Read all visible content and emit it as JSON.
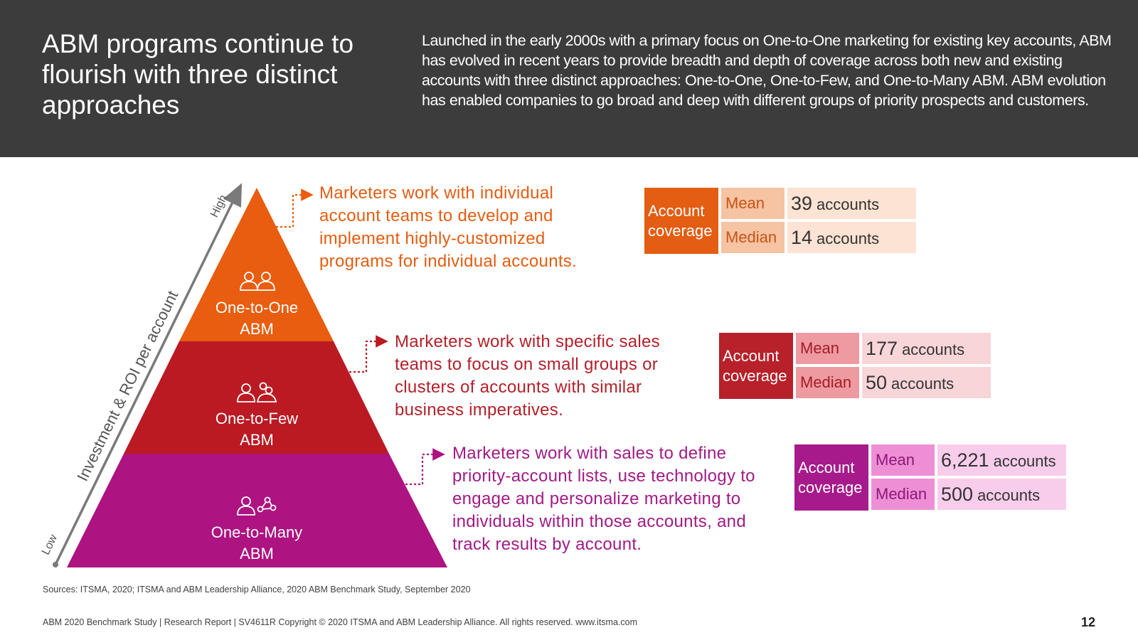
{
  "header": {
    "title": "ABM programs continue to flourish with three distinct approaches",
    "description": "Launched in the early 2000s with a primary focus on One-to-One marketing for existing key accounts, ABM has evolved in recent years to provide breadth and depth of coverage across both new and existing accounts with three distinct approaches: One-to-One, One-to-Few, and One-to-Many ABM. ABM evolution has enabled companies to go broad and deep with different groups of priority prospects and customers."
  },
  "axis": {
    "label": "Investment & ROI per account",
    "high": "High",
    "low": "Low"
  },
  "colors": {
    "one_to_one": "#e85d0f",
    "one_to_few": "#bb1a23",
    "one_to_many": "#ad1381"
  },
  "tiers": [
    {
      "name_line1": "One-to-One",
      "name_line2": "ABM",
      "icon": "two-people-icon",
      "description": "Marketers work with individual account teams to develop and implement highly-customized programs for individual accounts.",
      "coverage": {
        "label_line1": "Account",
        "label_line2": "coverage",
        "mean_label": "Mean",
        "mean_value": "39",
        "median_label": "Median",
        "median_value": "14",
        "unit": "accounts"
      }
    },
    {
      "name_line1": "One-to-Few",
      "name_line2": "ABM",
      "icon": "person-and-group-icon",
      "description": "Marketers work with specific sales teams to focus on small groups or clusters of accounts with similar business imperatives.",
      "coverage": {
        "label_line1": "Account",
        "label_line2": "coverage",
        "mean_label": "Mean",
        "mean_value": "177",
        "median_label": "Median",
        "median_value": "50",
        "unit": "accounts"
      }
    },
    {
      "name_line1": "One-to-Many",
      "name_line2": "ABM",
      "icon": "person-and-network-icon",
      "description": "Marketers work with sales to define priority-account lists, use technology to engage and personalize marketing to individuals within those accounts, and track results by account.",
      "coverage": {
        "label_line1": "Account",
        "label_line2": "coverage",
        "mean_label": "Mean",
        "mean_value": "6,221",
        "median_label": "Median",
        "median_value": "500",
        "unit": "accounts"
      }
    }
  ],
  "sources": "Sources: ITSMA, 2020; ITSMA and ABM Leadership Alliance, 2020 ABM Benchmark Study, September 2020",
  "footer": "ABM 2020 Benchmark Study | Research Report | SV4611R Copyright © 2020 ITSMA and ABM Leadership Alliance. All rights reserved. www.itsma.com",
  "page_number": "12"
}
